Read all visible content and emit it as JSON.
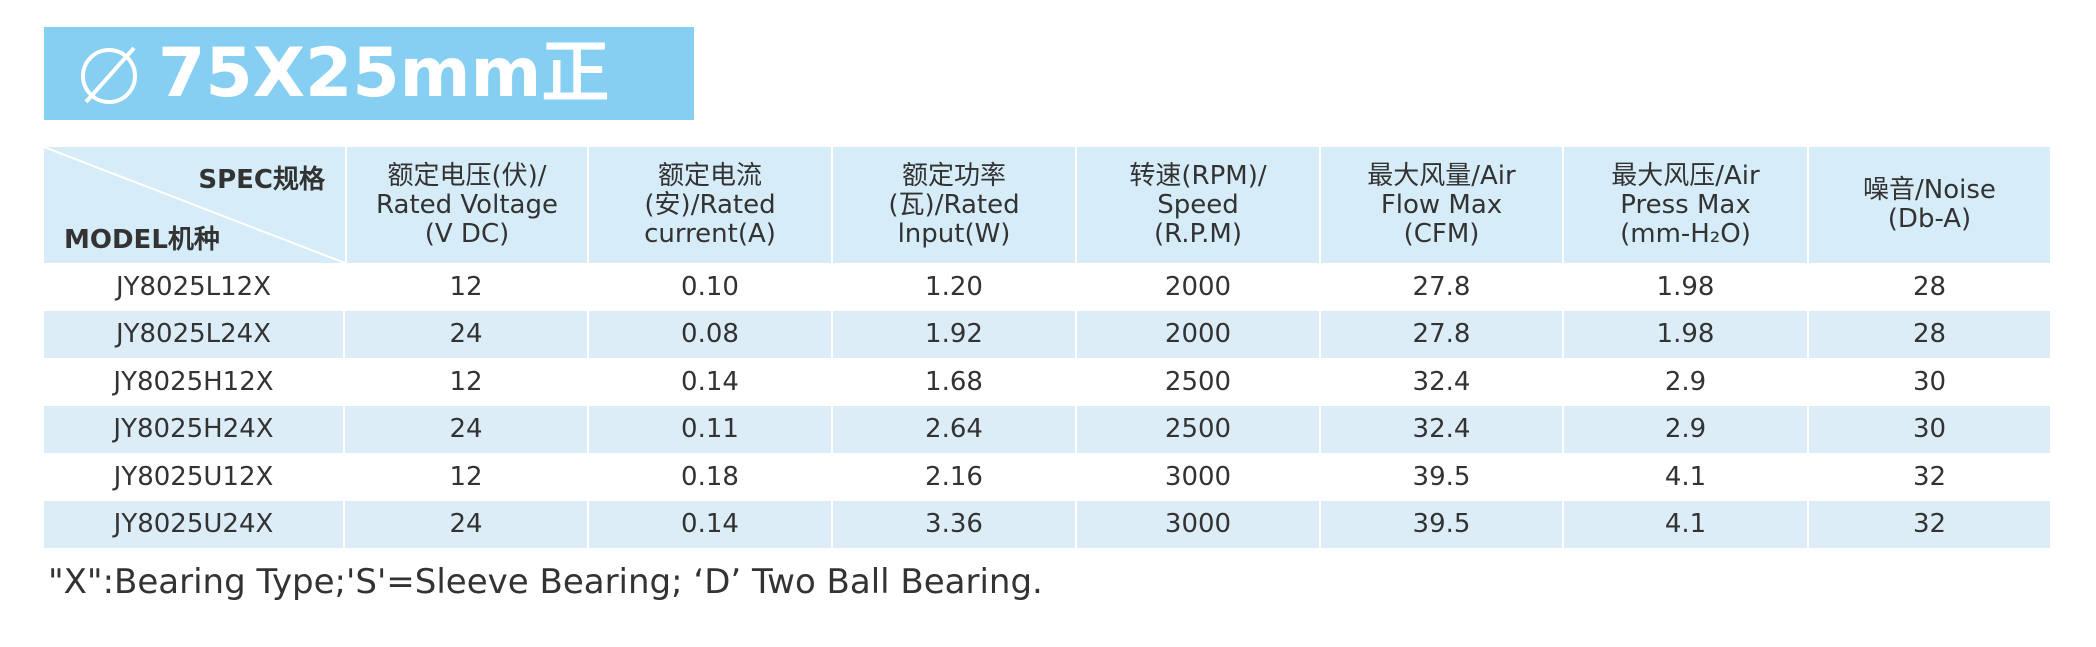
{
  "title": "75X25mm正",
  "table": {
    "corner": {
      "top": "SPEC规格",
      "bottom": "MODEL机种"
    },
    "headers": [
      [
        "额定电压(伏)/",
        "Rated Voltage",
        "(V DC)"
      ],
      [
        "额定电流",
        "(安)/Rated",
        "current(A)"
      ],
      [
        "额定功率",
        "(瓦)/Rated",
        "lnput(W)"
      ],
      [
        "转速(RPM)/",
        "Speed",
        "(R.P.M)"
      ],
      [
        "最大风量/Air",
        "Flow Max",
        "(CFM)"
      ],
      [
        "最大风压/Air",
        "Press Max",
        "(mm-H₂O)"
      ],
      [
        "噪音/Noise",
        "(Db-A)"
      ]
    ],
    "rows": [
      [
        "JY8025L12X",
        "12",
        "0.10",
        "1.20",
        "2000",
        "27.8",
        "1.98",
        "28"
      ],
      [
        "JY8025L24X",
        "24",
        "0.08",
        "1.92",
        "2000",
        "27.8",
        "1.98",
        "28"
      ],
      [
        "JY8025H12X",
        "12",
        "0.14",
        "1.68",
        "2500",
        "32.4",
        "2.9",
        "30"
      ],
      [
        "JY8025H24X",
        "24",
        "0.11",
        "2.64",
        "2500",
        "32.4",
        "2.9",
        "30"
      ],
      [
        "JY8025U12X",
        "12",
        "0.18",
        "2.16",
        "3000",
        "39.5",
        "4.1",
        "32"
      ],
      [
        "JY8025U24X",
        "24",
        "0.14",
        "3.36",
        "3000",
        "39.5",
        "4.1",
        "32"
      ]
    ]
  },
  "footnote": "\"X\":Bearing Type;'S'=Sleeve Bearing; ‘D’ Two Ball Bearing."
}
